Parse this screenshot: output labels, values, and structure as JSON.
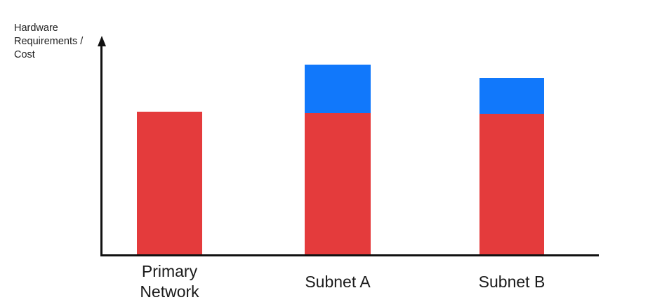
{
  "chart": {
    "y_axis_label": "Hardware\nRequirements /\nCost"
  },
  "chart_data": {
    "type": "bar",
    "stacked": true,
    "title": "",
    "xlabel": "",
    "ylabel": "Hardware Requirements / Cost",
    "categories": [
      "Primary Network",
      "Subnet A",
      "Subnet B"
    ],
    "series": [
      {
        "name": "red-series",
        "color": "#E43B3C",
        "values": [
          203,
          201,
          200
        ]
      },
      {
        "name": "blue-series",
        "color": "#1178FB",
        "values": [
          0,
          69,
          51
        ]
      }
    ],
    "totals": [
      203,
      270,
      251
    ],
    "ylim": [
      0,
      310
    ],
    "grid": false,
    "legend": "none",
    "axis_color": "#111111"
  },
  "colors": {
    "background": "#FFFFFF",
    "axis": "#111111",
    "label_text": "#1A1A1A",
    "red_bar": "#E43B3C",
    "blue_bar": "#1178FB"
  }
}
